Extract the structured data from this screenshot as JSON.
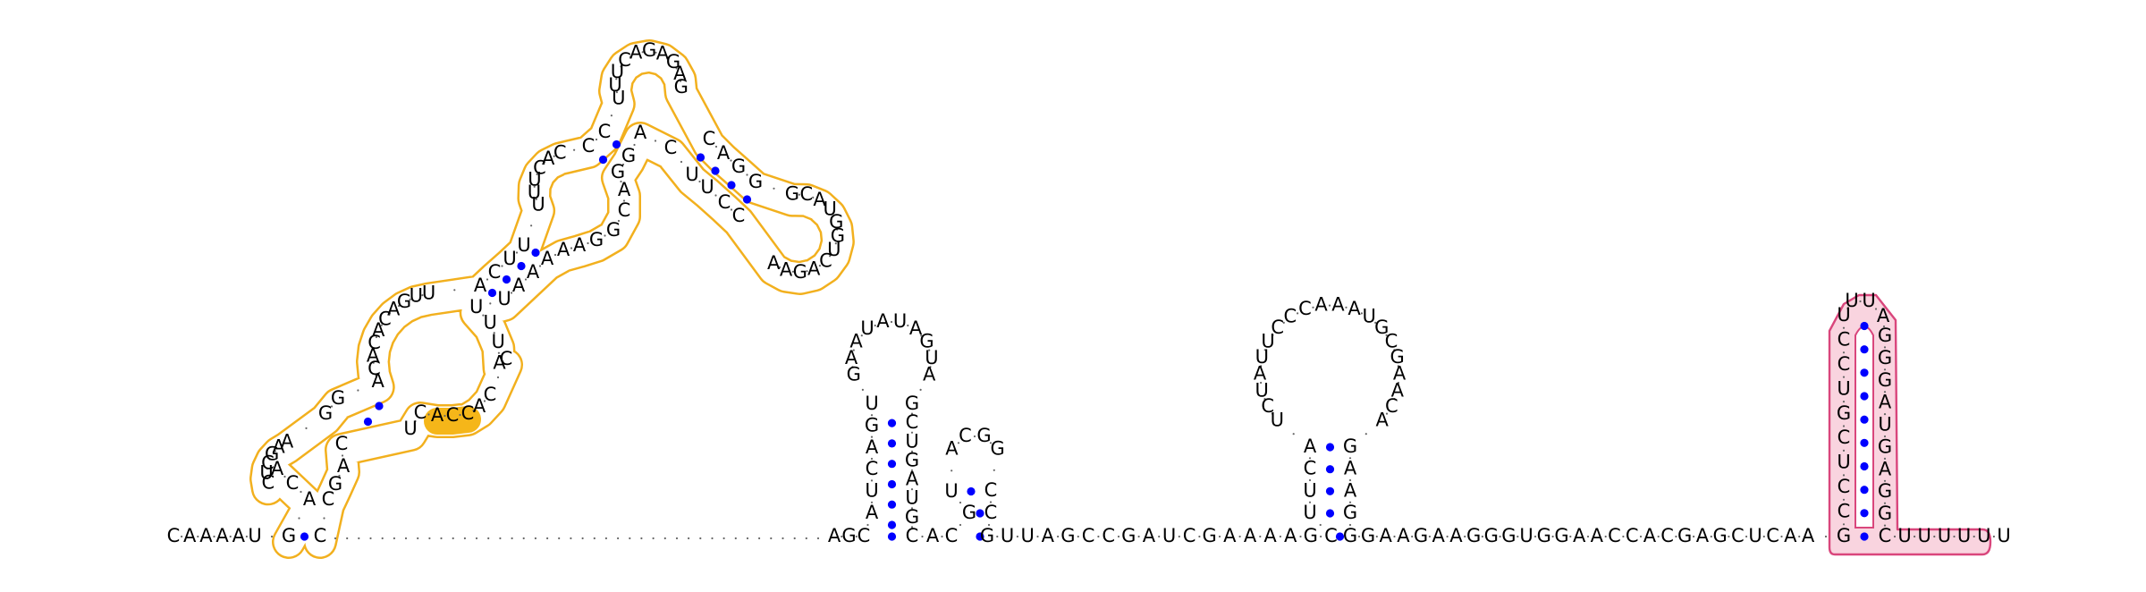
{
  "diagram": {
    "type": "rna-secondary-structure",
    "colors": {
      "nucleotide": "#000000",
      "base_pair": "#0000ff",
      "region1_outline": "#f2b01e",
      "region1_fill": "#ffffff",
      "region1_highlight": "#f5b619",
      "region2_outline": "#d9467c",
      "region2_fill": "#f9d4df",
      "backbone_dots": "#666666"
    },
    "left_tail": [
      "C",
      "A",
      "A",
      "A",
      "A",
      "U"
    ],
    "domain1": {
      "stem_a_5": [
        "G",
        "A",
        "C",
        "A"
      ],
      "loop_a": [
        "C",
        "U",
        "C",
        "G",
        "A",
        "A"
      ],
      "stem_b_5": [
        "G",
        "G"
      ],
      "internal_loop_5": [
        "A",
        "C",
        "A",
        "C",
        "A",
        "C",
        "A",
        "G",
        "U",
        "U"
      ],
      "stem_c_5": [
        "A",
        "C",
        "U",
        "U"
      ],
      "loop_c_5": [
        "U",
        "U",
        "U",
        "C",
        "A",
        "C"
      ],
      "stem_d_5": [
        "C",
        "C"
      ],
      "loop_d": [
        "U",
        "U",
        "U",
        "C",
        "A",
        "G",
        "A",
        "G",
        "A",
        "G"
      ],
      "stem_e_5": [
        "C",
        "A",
        "G",
        "G"
      ],
      "loop_e": [
        "G",
        "C",
        "A",
        "U",
        "G",
        "G",
        "U",
        "C",
        "A",
        "G",
        "A",
        "A"
      ],
      "stem_e_3": [
        "C",
        "C",
        "U",
        "U"
      ],
      "junction_de": [
        "C",
        "A"
      ],
      "stem_d_3": [
        "G",
        "G"
      ],
      "loop_c_3": [
        "A",
        "C",
        "G",
        "G",
        "A",
        "A"
      ],
      "stem_c_3": [
        "A",
        "A",
        "A",
        "U"
      ],
      "internal_loop_3": [
        "U",
        "U",
        "U",
        "A",
        "C",
        "C",
        "A"
      ],
      "highlight": [
        "C",
        "C",
        "A"
      ],
      "stem_b_3": [
        "C",
        "U"
      ],
      "stem_a_3": [
        "C",
        "A",
        "G",
        "C"
      ]
    },
    "linker_dots": 42,
    "before_hp1": [
      "A",
      "G",
      "C"
    ],
    "hairpin1": {
      "stem_5": [
        "A",
        "U",
        "C",
        "A",
        "G",
        "U"
      ],
      "loop": [
        "G",
        "A",
        "A",
        "U",
        "A",
        "U",
        "A",
        "G",
        "U",
        "A"
      ],
      "stem_3": [
        "G",
        "C",
        "U",
        "G",
        "A",
        "U",
        "G",
        "C"
      ]
    },
    "hairpin2": {
      "stem_5": [
        "A",
        "C",
        "G",
        "U"
      ],
      "loop": [
        "A",
        "C",
        "G",
        "G"
      ],
      "stem_3": [
        "C",
        "C"
      ]
    },
    "middle": [
      "G",
      "U",
      "U",
      "A",
      "G",
      "C",
      "C",
      "G",
      "A",
      "U",
      "C",
      "G",
      "A",
      "A",
      "A",
      "A",
      "G",
      "C"
    ],
    "hairpin3": {
      "stem_5": [
        "U",
        "U",
        "C",
        "A"
      ],
      "loop": [
        "U",
        "C",
        "U",
        "A",
        "U",
        "U",
        "C",
        "C",
        "C",
        "A",
        "A",
        "A",
        "U",
        "G",
        "C",
        "G",
        "A",
        "A",
        "C",
        "A"
      ],
      "stem_3": [
        "G",
        "A",
        "A",
        "G"
      ]
    },
    "post_hp3": [
      "G",
      "A",
      "A",
      "G",
      "A",
      "A",
      "G",
      "G",
      "G",
      "U",
      "G",
      "G",
      "A",
      "A",
      "C",
      "C",
      "A",
      "C",
      "G",
      "A",
      "G",
      "C",
      "U",
      "C",
      "A",
      "A"
    ],
    "terminator": {
      "stem_5": [
        "G",
        "C",
        "C",
        "U",
        "C",
        "G",
        "U",
        "C",
        "C",
        "U"
      ],
      "loop": [
        "U",
        "U",
        "A"
      ],
      "stem_3": [
        "G",
        "G",
        "G",
        "A",
        "U",
        "G",
        "A",
        "G",
        "G",
        "C"
      ]
    },
    "right_tail": [
      "U",
      "U",
      "U",
      "U",
      "U",
      "U"
    ]
  }
}
